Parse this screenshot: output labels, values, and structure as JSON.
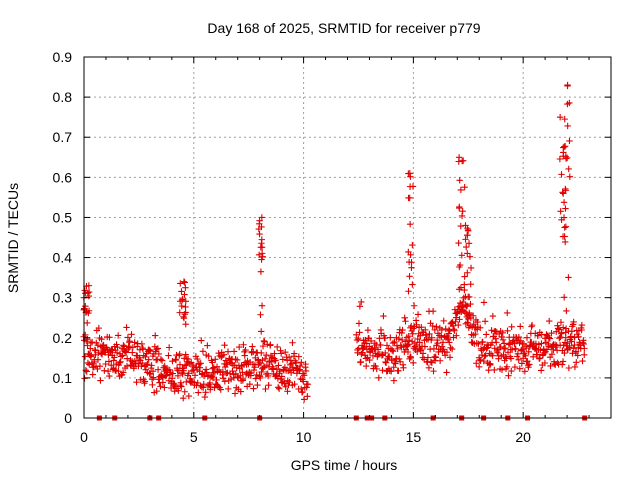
{
  "chart_data": {
    "type": "scatter",
    "title": "Day 168 of 2025, SRMTID for receiver p779",
    "xlabel": "GPS time / hours",
    "ylabel": "SRMTID / TECUs",
    "xlim": [
      0,
      24
    ],
    "ylim": [
      0,
      0.9
    ],
    "xticks": [
      0,
      5,
      10,
      15,
      20
    ],
    "yticks": [
      0,
      0.1,
      0.2,
      0.3,
      0.4,
      0.5,
      0.6,
      0.7,
      0.8,
      0.9
    ],
    "ytick_labels": [
      "0",
      "0.1",
      "0.2",
      "0.3",
      "0.4",
      "0.5",
      "0.6",
      "0.7",
      "0.8",
      "0.9"
    ],
    "grid": true,
    "marker": "+",
    "color": "#e00000",
    "series": [
      {
        "name": "SRMTID",
        "segments": [
          {
            "x_range": [
              0.0,
              10.2
            ],
            "baseline": [
              [
                0.0,
                0.16
              ],
              [
                2.0,
                0.15
              ],
              [
                4.0,
                0.11
              ],
              [
                5.0,
                0.11
              ],
              [
                7.0,
                0.12
              ],
              [
                8.0,
                0.14
              ],
              [
                10.2,
                0.1
              ]
            ]
          },
          {
            "x_range": [
              12.4,
              22.8
            ],
            "baseline": [
              [
                12.4,
                0.18
              ],
              [
                14.0,
                0.15
              ],
              [
                15.0,
                0.2
              ],
              [
                16.5,
                0.17
              ],
              [
                17.3,
                0.3
              ],
              [
                18.0,
                0.18
              ],
              [
                20.0,
                0.17
              ],
              [
                21.5,
                0.18
              ],
              [
                22.8,
                0.19
              ]
            ]
          }
        ],
        "peaks": [
          {
            "x": 0.1,
            "y": 0.33
          },
          {
            "x": 4.5,
            "y": 0.34
          },
          {
            "x": 8.1,
            "y": 0.5
          },
          {
            "x": 14.9,
            "y": 0.61
          },
          {
            "x": 17.2,
            "y": 0.65
          },
          {
            "x": 17.5,
            "y": 0.48
          },
          {
            "x": 21.8,
            "y": 0.75
          },
          {
            "x": 22.0,
            "y": 0.83
          }
        ]
      }
    ],
    "zero_markers_x": [
      0.7,
      1.4,
      3.0,
      3.4,
      5.5,
      8.0,
      12.4,
      12.9,
      13.1,
      13.7,
      15.9,
      17.2,
      18.2,
      19.3,
      20.2,
      22.8
    ]
  }
}
